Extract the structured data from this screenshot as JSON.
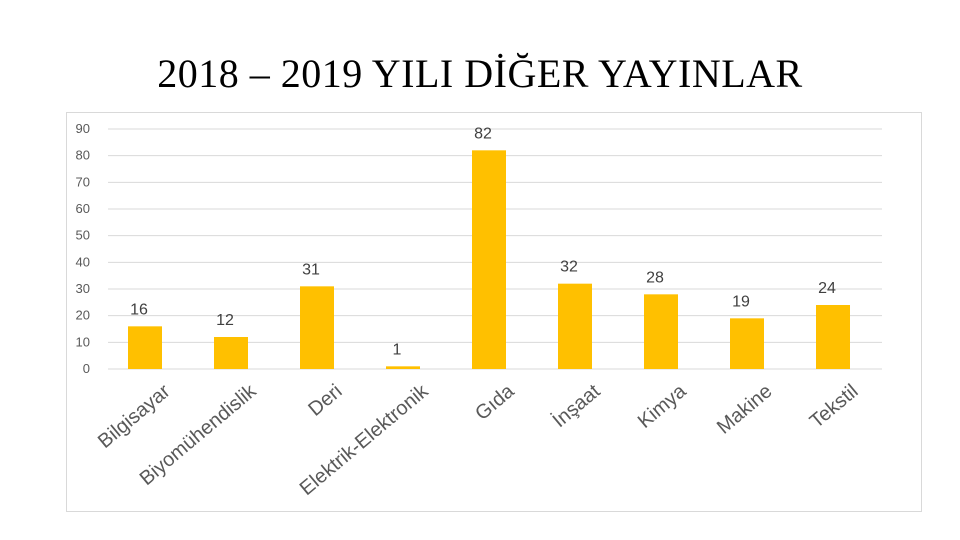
{
  "slide": {
    "title": "2018 – 2019 YILI DİĞER YAYINLAR"
  },
  "chart_data": {
    "type": "bar",
    "title": "",
    "xlabel": "",
    "ylabel": "",
    "categories": [
      "Bilgisayar",
      "Biyomühendislik",
      "Deri",
      "Elektrik-Elektronik",
      "Gıda",
      "İnşaat",
      "Kimya",
      "Makine",
      "Tekstil"
    ],
    "values": [
      16,
      12,
      31,
      1,
      82,
      32,
      28,
      19,
      24
    ],
    "ylim": [
      0,
      90
    ],
    "yticks": [
      0,
      10,
      20,
      30,
      40,
      50,
      60,
      70,
      80,
      90
    ],
    "grid": true,
    "legend": "none",
    "bar_color": "#FFC000",
    "grid_color": "#d9d9d9"
  }
}
